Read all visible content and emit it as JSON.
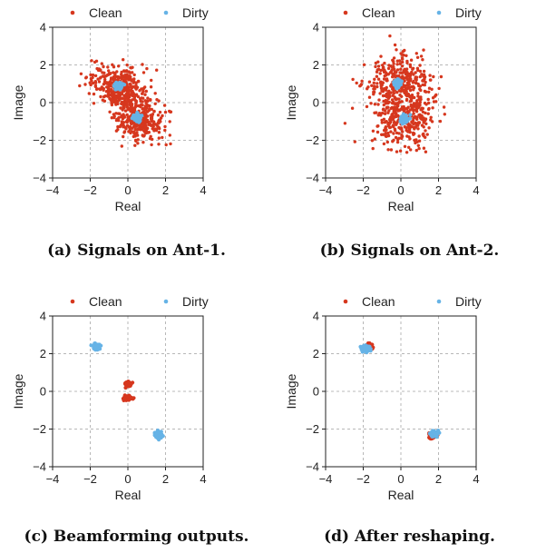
{
  "colors": {
    "clean": "#d6371e",
    "dirty": "#66b3e6",
    "grid": "#b8b8b8",
    "axis": "#222222"
  },
  "chart_data": [
    {
      "type": "scatter",
      "caption": "(a) Signals on Ant-1.",
      "xlabel": "Real",
      "ylabel": "Image",
      "xlim": [
        -4,
        4
      ],
      "ylim": [
        -4,
        4
      ],
      "xticks": [
        "−4",
        "−2",
        "0",
        "2",
        "4"
      ],
      "yticks": [
        "4",
        "2",
        "0",
        "−2",
        "−4"
      ],
      "legend_position": "top",
      "grid": true,
      "series": [
        {
          "name": "Clean",
          "clusters": [
            {
              "center": [
                -0.5,
                0.9
              ],
              "spread": [
                0.75,
                0.55
              ],
              "corr": -0.3,
              "count": 340
            },
            {
              "center": [
                0.5,
                -0.8
              ],
              "spread": [
                0.7,
                0.6
              ],
              "corr": -0.3,
              "count": 340
            }
          ]
        },
        {
          "name": "Dirty",
          "clusters": [
            {
              "center": [
                -0.5,
                0.9
              ],
              "spread": [
                0.1,
                0.09
              ],
              "corr": 0,
              "count": 80
            },
            {
              "center": [
                0.5,
                -0.8
              ],
              "spread": [
                0.1,
                0.09
              ],
              "corr": 0,
              "count": 80
            }
          ]
        }
      ]
    },
    {
      "type": "scatter",
      "caption": "(b) Signals on Ant-2.",
      "xlabel": "Real",
      "ylabel": "Image",
      "xlim": [
        -4,
        4
      ],
      "ylim": [
        -4,
        4
      ],
      "xticks": [
        "−4",
        "−2",
        "0",
        "2",
        "4"
      ],
      "yticks": [
        "4",
        "2",
        "0",
        "−2",
        "−4"
      ],
      "legend_position": "top",
      "grid": true,
      "series": [
        {
          "name": "Clean",
          "clusters": [
            {
              "center": [
                -0.2,
                1.0
              ],
              "spread": [
                0.85,
                0.7
              ],
              "corr": 0.1,
              "count": 330
            },
            {
              "center": [
                0.2,
                -0.9
              ],
              "spread": [
                0.8,
                0.75
              ],
              "corr": 0.1,
              "count": 330
            }
          ]
        },
        {
          "name": "Dirty",
          "clusters": [
            {
              "center": [
                -0.2,
                1.0
              ],
              "spread": [
                0.09,
                0.09
              ],
              "corr": 0,
              "count": 80
            },
            {
              "center": [
                0.2,
                -0.9
              ],
              "spread": [
                0.09,
                0.09
              ],
              "corr": 0,
              "count": 80
            }
          ]
        }
      ]
    },
    {
      "type": "scatter",
      "caption": "(c) Beamforming outputs.",
      "xlabel": "Real",
      "ylabel": "Image",
      "xlim": [
        -4,
        4
      ],
      "ylim": [
        -4,
        4
      ],
      "xticks": [
        "−4",
        "−2",
        "0",
        "2",
        "4"
      ],
      "yticks": [
        "4",
        "2",
        "0",
        "−2",
        "−4"
      ],
      "legend_position": "top",
      "grid": true,
      "series": [
        {
          "name": "Clean",
          "clusters": [
            {
              "center": [
                0.0,
                0.4
              ],
              "spread": [
                0.08,
                0.06
              ],
              "corr": 0,
              "count": 90
            },
            {
              "center": [
                0.0,
                -0.35
              ],
              "spread": [
                0.1,
                0.05
              ],
              "corr": 0,
              "count": 90
            }
          ]
        },
        {
          "name": "Dirty",
          "clusters": [
            {
              "center": [
                -1.65,
                2.35
              ],
              "spread": [
                0.1,
                0.07
              ],
              "corr": 0,
              "count": 110
            },
            {
              "center": [
                1.65,
                -2.3
              ],
              "spread": [
                0.09,
                0.08
              ],
              "corr": 0,
              "count": 110
            }
          ]
        }
      ]
    },
    {
      "type": "scatter",
      "caption": "(d) After reshaping.",
      "xlabel": "Real",
      "ylabel": "Image",
      "xlim": [
        -4,
        4
      ],
      "ylim": [
        -4,
        4
      ],
      "xticks": [
        "−4",
        "−2",
        "0",
        "2",
        "4"
      ],
      "yticks": [
        "4",
        "2",
        "0",
        "−2",
        "−4"
      ],
      "legend_position": "top",
      "grid": true,
      "series": [
        {
          "name": "Clean",
          "clusters": [
            {
              "center": [
                -1.7,
                2.35
              ],
              "spread": [
                0.09,
                0.07
              ],
              "corr": 0,
              "count": 90
            },
            {
              "center": [
                1.65,
                -2.35
              ],
              "spread": [
                0.09,
                0.07
              ],
              "corr": 0,
              "count": 90
            }
          ]
        },
        {
          "name": "Dirty",
          "clusters": [
            {
              "center": [
                -1.85,
                2.25
              ],
              "spread": [
                0.1,
                0.07
              ],
              "corr": 0,
              "count": 100
            },
            {
              "center": [
                1.8,
                -2.25
              ],
              "spread": [
                0.1,
                0.07
              ],
              "corr": 0,
              "count": 100
            }
          ]
        }
      ]
    }
  ]
}
